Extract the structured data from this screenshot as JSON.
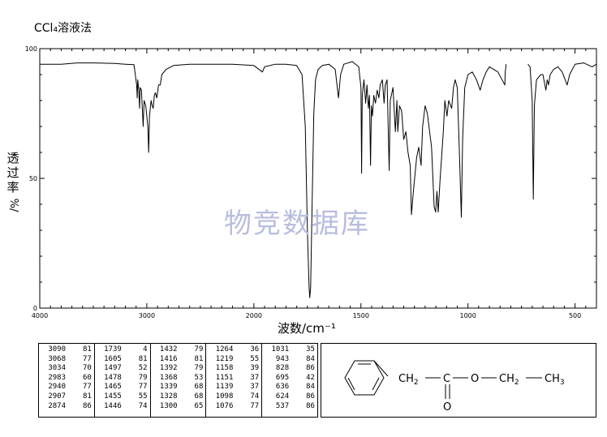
{
  "title": "CCl₄溶液法",
  "watermark": "物竞数据库",
  "chart_data": {
    "type": "line",
    "xlabel": "波数/cm⁻¹",
    "ylabel_main": "透过率",
    "ylabel_unit": "%/",
    "xlim": [
      4000,
      400
    ],
    "ylim": [
      0,
      100
    ],
    "x_ticks": [
      4000,
      3000,
      2000,
      1500,
      1000,
      500
    ],
    "y_ticks": [
      0,
      50,
      100
    ],
    "series": [
      {
        "points": [
          [
            4000,
            94
          ],
          [
            3800,
            94
          ],
          [
            3650,
            94.5
          ],
          [
            3500,
            94.5
          ],
          [
            3300,
            94.3
          ],
          [
            3200,
            94
          ],
          [
            3120,
            93.8
          ],
          [
            3095,
            86
          ],
          [
            3090,
            81
          ],
          [
            3085,
            88
          ],
          [
            3075,
            84
          ],
          [
            3068,
            77
          ],
          [
            3062,
            85
          ],
          [
            3050,
            84
          ],
          [
            3034,
            70
          ],
          [
            3025,
            80
          ],
          [
            3010,
            78
          ],
          [
            2990,
            70
          ],
          [
            2983,
            60
          ],
          [
            2975,
            74
          ],
          [
            2960,
            80
          ],
          [
            2950,
            78
          ],
          [
            2940,
            77
          ],
          [
            2930,
            82
          ],
          [
            2920,
            83
          ],
          [
            2907,
            81
          ],
          [
            2890,
            86
          ],
          [
            2874,
            86
          ],
          [
            2860,
            90
          ],
          [
            2820,
            92
          ],
          [
            2750,
            93.5
          ],
          [
            2600,
            94
          ],
          [
            2400,
            94
          ],
          [
            2200,
            94
          ],
          [
            2000,
            93.5
          ],
          [
            1960,
            91
          ],
          [
            1950,
            93
          ],
          [
            1900,
            94
          ],
          [
            1850,
            94
          ],
          [
            1800,
            93.5
          ],
          [
            1775,
            90
          ],
          [
            1760,
            70
          ],
          [
            1750,
            30
          ],
          [
            1742,
            8
          ],
          [
            1739,
            4
          ],
          [
            1735,
            8
          ],
          [
            1728,
            40
          ],
          [
            1720,
            75
          ],
          [
            1712,
            88
          ],
          [
            1700,
            92
          ],
          [
            1680,
            93.5
          ],
          [
            1650,
            94
          ],
          [
            1620,
            92
          ],
          [
            1605,
            81
          ],
          [
            1595,
            90
          ],
          [
            1580,
            94
          ],
          [
            1540,
            95
          ],
          [
            1510,
            93
          ],
          [
            1500,
            85
          ],
          [
            1497,
            52
          ],
          [
            1494,
            82
          ],
          [
            1486,
            88
          ],
          [
            1478,
            79
          ],
          [
            1472,
            86
          ],
          [
            1465,
            77
          ],
          [
            1460,
            82
          ],
          [
            1455,
            55
          ],
          [
            1451,
            78
          ],
          [
            1446,
            74
          ],
          [
            1440,
            82
          ],
          [
            1432,
            79
          ],
          [
            1424,
            84
          ],
          [
            1416,
            81
          ],
          [
            1410,
            86
          ],
          [
            1400,
            88
          ],
          [
            1392,
            79
          ],
          [
            1386,
            86
          ],
          [
            1378,
            88
          ],
          [
            1368,
            53
          ],
          [
            1363,
            80
          ],
          [
            1350,
            85
          ],
          [
            1339,
            68
          ],
          [
            1332,
            80
          ],
          [
            1328,
            68
          ],
          [
            1320,
            78
          ],
          [
            1310,
            76
          ],
          [
            1300,
            65
          ],
          [
            1290,
            68
          ],
          [
            1280,
            60
          ],
          [
            1270,
            55
          ],
          [
            1264,
            36
          ],
          [
            1255,
            45
          ],
          [
            1240,
            58
          ],
          [
            1230,
            62
          ],
          [
            1219,
            55
          ],
          [
            1212,
            70
          ],
          [
            1200,
            78
          ],
          [
            1190,
            75
          ],
          [
            1170,
            62
          ],
          [
            1158,
            39
          ],
          [
            1151,
            37
          ],
          [
            1145,
            45
          ],
          [
            1139,
            37
          ],
          [
            1130,
            50
          ],
          [
            1115,
            68
          ],
          [
            1108,
            80
          ],
          [
            1098,
            74
          ],
          [
            1090,
            80
          ],
          [
            1076,
            77
          ],
          [
            1068,
            85
          ],
          [
            1060,
            88
          ],
          [
            1050,
            85
          ],
          [
            1040,
            60
          ],
          [
            1031,
            35
          ],
          [
            1025,
            65
          ],
          [
            1015,
            85
          ],
          [
            1000,
            90
          ],
          [
            980,
            91
          ],
          [
            960,
            88
          ],
          [
            943,
            84
          ],
          [
            930,
            88
          ],
          [
            915,
            91
          ],
          [
            900,
            93
          ],
          [
            880,
            92
          ],
          [
            860,
            91
          ],
          [
            828,
            86
          ],
          [
            826,
            91
          ],
          [
            822,
            94
          ],
          [
            790,
            94
          ],
          [
            720,
            94
          ],
          [
            710,
            93
          ],
          [
            700,
            80
          ],
          [
            695,
            42
          ],
          [
            690,
            78
          ],
          [
            680,
            88
          ],
          [
            660,
            90
          ],
          [
            650,
            90
          ],
          [
            636,
            84
          ],
          [
            630,
            88
          ],
          [
            624,
            86
          ],
          [
            616,
            90
          ],
          [
            600,
            92
          ],
          [
            580,
            93
          ],
          [
            560,
            91
          ],
          [
            537,
            86
          ],
          [
            525,
            90
          ],
          [
            500,
            94
          ],
          [
            460,
            94.5
          ],
          [
            420,
            93
          ],
          [
            400,
            94
          ]
        ]
      }
    ],
    "gaps": [
      [
        820,
        720
      ]
    ]
  },
  "peaks": {
    "columns": [
      [
        [
          "3090",
          "81"
        ],
        [
          "3068",
          "77"
        ],
        [
          "3034",
          "70"
        ],
        [
          "2983",
          "60"
        ],
        [
          "2940",
          "77"
        ],
        [
          "2907",
          "81"
        ],
        [
          "2874",
          "86"
        ]
      ],
      [
        [
          "1739",
          "4"
        ],
        [
          "1605",
          "81"
        ],
        [
          "1497",
          "52"
        ],
        [
          "1478",
          "79"
        ],
        [
          "1465",
          "77"
        ],
        [
          "1455",
          "55"
        ],
        [
          "1446",
          "74"
        ]
      ],
      [
        [
          "1432",
          "79"
        ],
        [
          "1416",
          "81"
        ],
        [
          "1392",
          "79"
        ],
        [
          "1368",
          "53"
        ],
        [
          "1339",
          "68"
        ],
        [
          "1328",
          "68"
        ],
        [
          "1300",
          "65"
        ]
      ],
      [
        [
          "1264",
          "36"
        ],
        [
          "1219",
          "55"
        ],
        [
          "1158",
          "39"
        ],
        [
          "1151",
          "37"
        ],
        [
          "1139",
          "37"
        ],
        [
          "1098",
          "74"
        ],
        [
          "1076",
          "77"
        ]
      ],
      [
        [
          "1031",
          "35"
        ],
        [
          "943",
          "84"
        ],
        [
          "828",
          "86"
        ],
        [
          "695",
          "42"
        ],
        [
          "636",
          "84"
        ],
        [
          "624",
          "86"
        ],
        [
          "537",
          "86"
        ]
      ]
    ]
  },
  "structure": {
    "ch2_a": "CH",
    "ch2_b": "CH",
    "sub2": "2",
    "ch3": "CH",
    "sub3": "3",
    "carbon": "C",
    "oxygen": "O",
    "carbonyl_o": "O"
  }
}
